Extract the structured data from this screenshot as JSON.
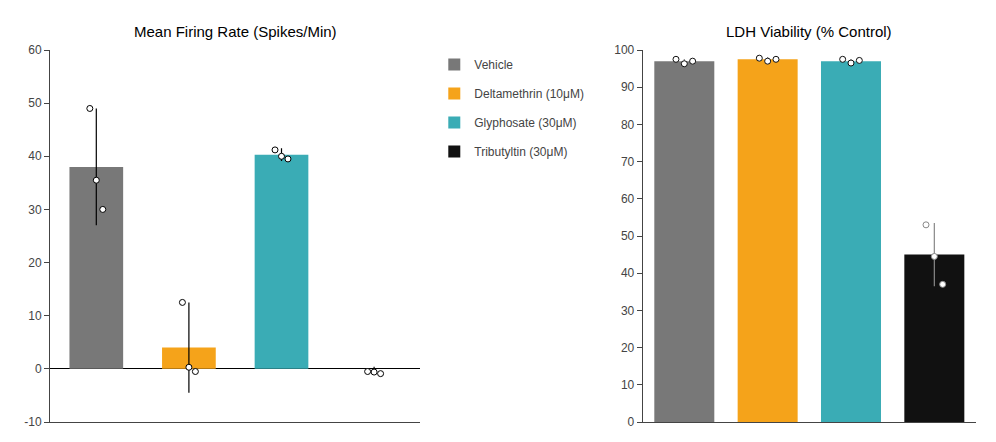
{
  "chart_data": [
    {
      "type": "bar",
      "title": "Mean Firing Rate (Spikes/Min)",
      "categories": [
        "Vehicle",
        "Deltamethrin (10μM)",
        "Glyphosate (30μM)",
        "Tributyltin (30μM)"
      ],
      "values": [
        38,
        4,
        40.3,
        0
      ],
      "colors": [
        "#787878",
        "#F5A31A",
        "#3AACB5",
        "#111111"
      ],
      "errors": [
        11,
        8.5,
        1.2,
        0.4
      ],
      "error_color": "#000000",
      "points": [
        [
          49,
          35.5,
          30
        ],
        [
          12.5,
          0.3,
          -0.5
        ],
        [
          41.2,
          40.0,
          39.5
        ],
        [
          -0.5,
          -0.6,
          -0.9
        ]
      ],
      "point_colors": [
        [
          "#000000",
          "#000000",
          "#000000"
        ],
        [
          "#000000",
          "#000000",
          "#000000"
        ],
        [
          "#000000",
          "#000000",
          "#000000"
        ],
        [
          "#000000",
          "#000000",
          "#000000"
        ]
      ],
      "ylim": [
        -10,
        60
      ],
      "yticks": [
        -10,
        0,
        10,
        20,
        30,
        40,
        50,
        60
      ],
      "grid": false,
      "tick_labels": "y",
      "legend": "upper right"
    },
    {
      "type": "bar",
      "title": "LDH Viability (% Control)",
      "categories": [
        "Vehicle",
        "Deltamethrin (10μM)",
        "Glyphosate (30μM)",
        "Tributyltin (30μM)"
      ],
      "values": [
        97,
        97.5,
        97,
        45
      ],
      "colors": [
        "#787878",
        "#F5A31A",
        "#3AACB5",
        "#111111"
      ],
      "errors": [
        0.6,
        0.6,
        0.6,
        8.5
      ],
      "error_color": "#888888",
      "points": [
        [
          97.5,
          96.3,
          97.0
        ],
        [
          97.8,
          97.0,
          97.5
        ],
        [
          97.5,
          96.5,
          97.2
        ],
        [
          53,
          44.5,
          37
        ]
      ],
      "point_colors": [
        [
          "#111111",
          "#111111",
          "#111111"
        ],
        [
          "#111111",
          "#111111",
          "#111111"
        ],
        [
          "#111111",
          "#111111",
          "#111111"
        ],
        [
          "#888888",
          "#888888",
          "#888888"
        ]
      ],
      "ylim": [
        0,
        100
      ],
      "yticks": [
        0,
        10,
        20,
        30,
        40,
        50,
        60,
        70,
        80,
        90,
        100
      ],
      "grid": false,
      "tick_labels": "y"
    }
  ]
}
